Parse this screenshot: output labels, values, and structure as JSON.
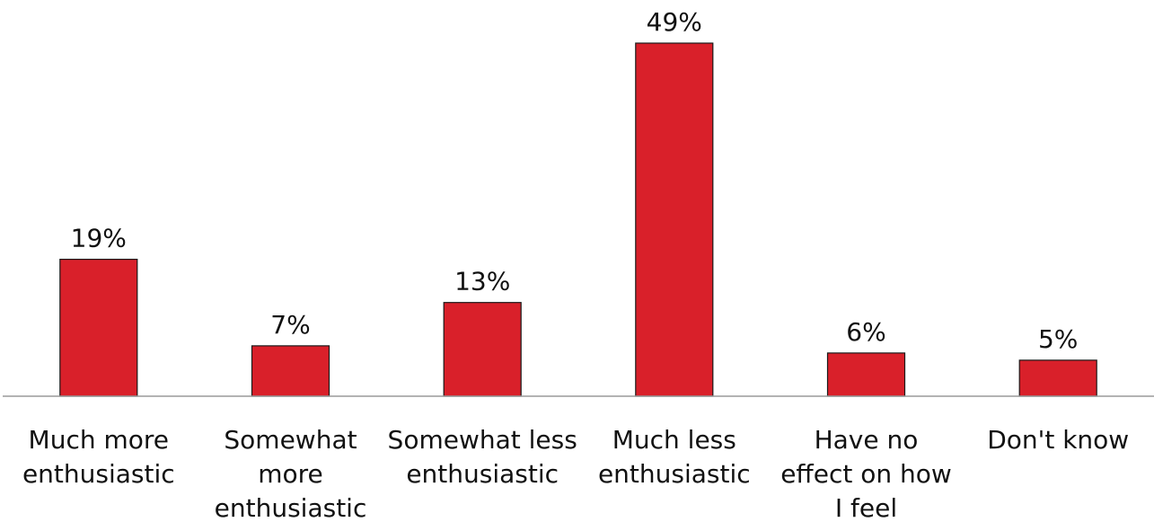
{
  "chart_data": {
    "type": "bar",
    "categories": [
      [
        "Much more",
        "enthusiastic"
      ],
      [
        "Somewhat",
        "more",
        "enthusiastic"
      ],
      [
        "Somewhat less",
        "enthusiastic"
      ],
      [
        "Much less",
        "enthusiastic"
      ],
      [
        "Have no",
        "effect on how",
        "I feel"
      ],
      [
        "Don't know"
      ]
    ],
    "values": [
      19,
      7,
      13,
      49,
      6,
      5
    ],
    "value_labels": [
      "19%",
      "7%",
      "13%",
      "49%",
      "6%",
      "5%"
    ],
    "unit": "%",
    "ylim": [
      0,
      49
    ],
    "grid": false,
    "legend": "none",
    "bar_color": "#d9202a",
    "title": "",
    "xlabel": "",
    "ylabel": ""
  }
}
